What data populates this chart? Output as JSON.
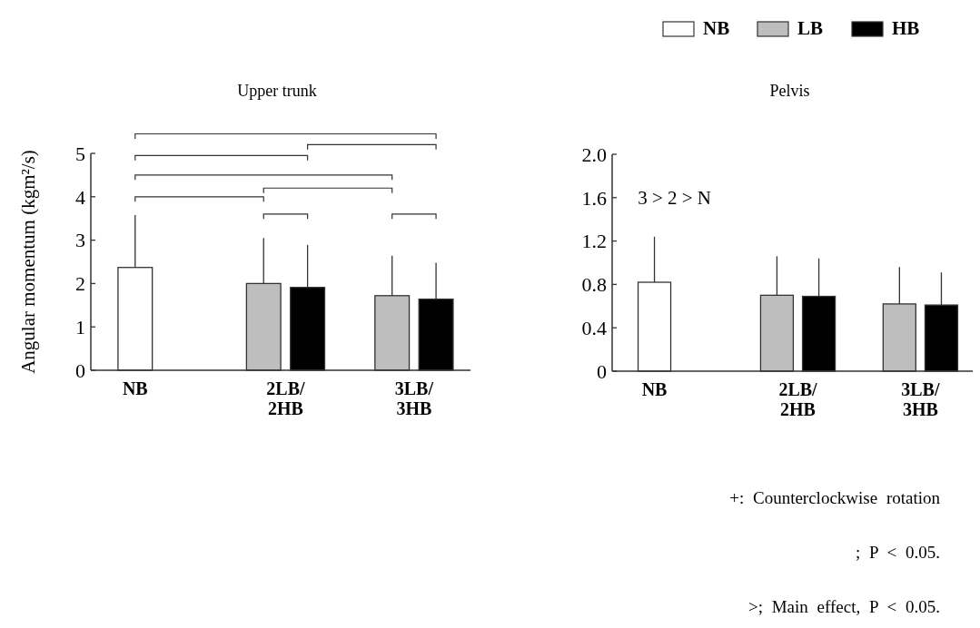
{
  "chart_data": [
    {
      "type": "bar",
      "title": "Upper trunk",
      "ylabel": "Angular momentum (kgm²/s)",
      "categories": [
        "NB",
        "2LB/2HB",
        "3LB/3HB"
      ],
      "series": [
        {
          "color": "#ffffff",
          "values": [
            2.37,
            null,
            null
          ],
          "errors": [
            [
              2.37,
              3.58
            ],
            null,
            null
          ]
        },
        {
          "color": "#bebebe",
          "values": [
            null,
            2.0,
            1.72
          ],
          "errors": [
            null,
            [
              2.0,
              3.05
            ],
            [
              1.72,
              2.64
            ]
          ]
        },
        {
          "color": "#000000",
          "values": [
            null,
            1.91,
            1.64
          ],
          "errors": [
            null,
            [
              1.91,
              2.89
            ],
            [
              1.64,
              2.48
            ]
          ]
        }
      ],
      "ylim": [
        0,
        5
      ],
      "yticks": [
        0,
        1,
        2,
        3,
        4,
        5
      ],
      "grid": false
    },
    {
      "type": "bar",
      "title": "Pelvis",
      "categories": [
        "NB",
        "2LB/2HB",
        "3LB/3HB"
      ],
      "series": [
        {
          "name": "NB",
          "color": "#ffffff",
          "values": [
            0.82,
            null,
            null
          ],
          "errors": [
            [
              0.82,
              1.24
            ],
            null,
            null
          ]
        },
        {
          "name": "LB",
          "color": "#bebebe",
          "values": [
            null,
            0.7,
            0.62
          ],
          "errors": [
            null,
            [
              0.7,
              1.06
            ],
            [
              0.62,
              0.96
            ]
          ]
        },
        {
          "name": "HB",
          "color": "#000000",
          "values": [
            null,
            0.69,
            0.61
          ],
          "errors": [
            null,
            [
              0.69,
              1.04
            ],
            [
              0.61,
              0.91
            ]
          ]
        }
      ],
      "ylim": [
        0,
        2
      ],
      "yticks": [
        0,
        {
          "value": 0.4,
          "label": "0.4"
        },
        {
          "value": 0.8,
          "label": "0.8"
        },
        {
          "value": 1.2,
          "label": "1.2"
        },
        {
          "value": 1.6,
          "label": "1.6"
        },
        {
          "value": 2,
          "label": "2.0"
        }
      ],
      "grid": false,
      "legend": "top right",
      "annotations": [
        "3 > 2 > N",
        "+: Counterclockwise rotation",
        "; P < 0.05.",
        ">; Main effect, P < 0.05."
      ]
    }
  ]
}
